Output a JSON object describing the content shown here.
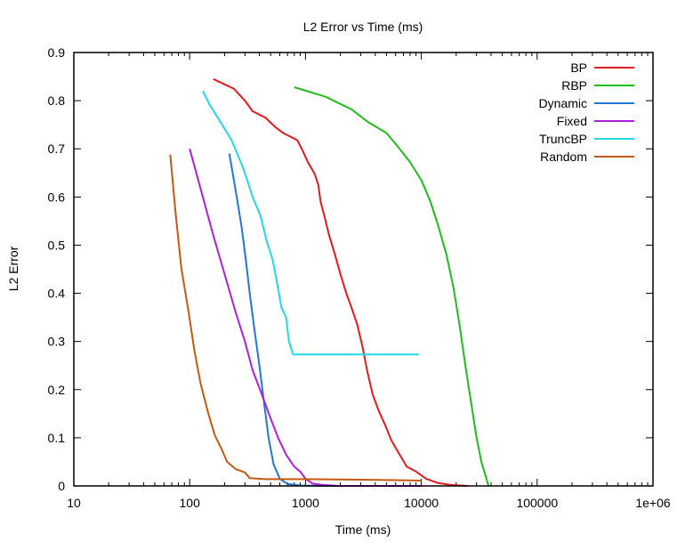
{
  "chart_data": {
    "type": "line",
    "title": "L2 Error vs Time (ms)",
    "xlabel": "Time (ms)",
    "ylabel": "L2 Error",
    "xscale": "log",
    "xlim": [
      10,
      1000000
    ],
    "ylim": [
      0,
      0.9
    ],
    "xticks": [
      {
        "value": 10,
        "label": "10"
      },
      {
        "value": 100,
        "label": "100"
      },
      {
        "value": 1000,
        "label": "1000"
      },
      {
        "value": 10000,
        "label": "10000"
      },
      {
        "value": 100000,
        "label": "100000"
      },
      {
        "value": 1000000,
        "label": "1e+06"
      }
    ],
    "yticks": [
      {
        "value": 0,
        "label": "0"
      },
      {
        "value": 0.1,
        "label": "0.1"
      },
      {
        "value": 0.2,
        "label": "0.2"
      },
      {
        "value": 0.3,
        "label": "0.3"
      },
      {
        "value": 0.4,
        "label": "0.4"
      },
      {
        "value": 0.5,
        "label": "0.5"
      },
      {
        "value": 0.6,
        "label": "0.6"
      },
      {
        "value": 0.7,
        "label": "0.7"
      },
      {
        "value": 0.8,
        "label": "0.8"
      },
      {
        "value": 0.9,
        "label": "0.9"
      }
    ],
    "grid": false,
    "legend_position": "top-right",
    "series": [
      {
        "name": "BP",
        "color": "#e41a1c",
        "points": [
          [
            160,
            0.845
          ],
          [
            240,
            0.825
          ],
          [
            300,
            0.8
          ],
          [
            350,
            0.778
          ],
          [
            450,
            0.765
          ],
          [
            550,
            0.745
          ],
          [
            650,
            0.732
          ],
          [
            850,
            0.718
          ],
          [
            950,
            0.695
          ],
          [
            1050,
            0.672
          ],
          [
            1200,
            0.648
          ],
          [
            1290,
            0.625
          ],
          [
            1350,
            0.59
          ],
          [
            1450,
            0.562
          ],
          [
            1600,
            0.52
          ],
          [
            1800,
            0.48
          ],
          [
            2000,
            0.44
          ],
          [
            2250,
            0.4
          ],
          [
            2500,
            0.37
          ],
          [
            2800,
            0.335
          ],
          [
            3100,
            0.29
          ],
          [
            3400,
            0.24
          ],
          [
            3800,
            0.19
          ],
          [
            4300,
            0.155
          ],
          [
            4900,
            0.125
          ],
          [
            5500,
            0.095
          ],
          [
            6500,
            0.065
          ],
          [
            7500,
            0.04
          ],
          [
            9000,
            0.03
          ],
          [
            11000,
            0.015
          ],
          [
            14000,
            0.006
          ],
          [
            18000,
            0.002
          ],
          [
            25000,
            0.0
          ]
        ]
      },
      {
        "name": "RBP",
        "color": "#1fbd1f",
        "points": [
          [
            800,
            0.828
          ],
          [
            1500,
            0.808
          ],
          [
            2500,
            0.782
          ],
          [
            3500,
            0.755
          ],
          [
            5000,
            0.733
          ],
          [
            6500,
            0.7
          ],
          [
            8000,
            0.672
          ],
          [
            10000,
            0.635
          ],
          [
            12000,
            0.59
          ],
          [
            14000,
            0.54
          ],
          [
            16500,
            0.48
          ],
          [
            19000,
            0.41
          ],
          [
            21500,
            0.33
          ],
          [
            24000,
            0.25
          ],
          [
            27000,
            0.17
          ],
          [
            30000,
            0.1
          ],
          [
            33000,
            0.05
          ],
          [
            36000,
            0.02
          ],
          [
            38000,
            0.0
          ]
        ]
      },
      {
        "name": "Dynamic",
        "color": "#1f78d4",
        "points": [
          [
            220,
            0.69
          ],
          [
            255,
            0.6
          ],
          [
            280,
            0.54
          ],
          [
            305,
            0.47
          ],
          [
            330,
            0.4
          ],
          [
            360,
            0.33
          ],
          [
            400,
            0.25
          ],
          [
            440,
            0.17
          ],
          [
            480,
            0.1
          ],
          [
            530,
            0.045
          ],
          [
            600,
            0.015
          ],
          [
            700,
            0.004
          ],
          [
            900,
            0.001
          ],
          [
            1500,
            0.0
          ],
          [
            5000,
            0.0
          ],
          [
            10000,
            0.0
          ]
        ]
      },
      {
        "name": "Fixed",
        "color": "#b01ee0",
        "points": [
          [
            100,
            0.7
          ],
          [
            130,
            0.6
          ],
          [
            160,
            0.52
          ],
          [
            200,
            0.44
          ],
          [
            250,
            0.36
          ],
          [
            300,
            0.3
          ],
          [
            350,
            0.24
          ],
          [
            420,
            0.19
          ],
          [
            500,
            0.14
          ],
          [
            580,
            0.1
          ],
          [
            680,
            0.065
          ],
          [
            800,
            0.04
          ],
          [
            900,
            0.03
          ],
          [
            1000,
            0.015
          ],
          [
            1150,
            0.005
          ],
          [
            1400,
            0.002
          ],
          [
            2000,
            0.0
          ],
          [
            10000,
            0.0
          ]
        ]
      },
      {
        "name": "TruncBP",
        "color": "#22d8e6",
        "points": [
          [
            130,
            0.82
          ],
          [
            150,
            0.79
          ],
          [
            180,
            0.76
          ],
          [
            230,
            0.718
          ],
          [
            290,
            0.66
          ],
          [
            350,
            0.6
          ],
          [
            410,
            0.56
          ],
          [
            460,
            0.51
          ],
          [
            520,
            0.47
          ],
          [
            570,
            0.42
          ],
          [
            620,
            0.37
          ],
          [
            680,
            0.35
          ],
          [
            720,
            0.3
          ],
          [
            780,
            0.273
          ],
          [
            1500,
            0.273
          ],
          [
            4000,
            0.273
          ],
          [
            9500,
            0.273
          ]
        ]
      },
      {
        "name": "Random",
        "color": "#c45a11",
        "points": [
          [
            68,
            0.688
          ],
          [
            76,
            0.56
          ],
          [
            85,
            0.45
          ],
          [
            98,
            0.36
          ],
          [
            110,
            0.28
          ],
          [
            125,
            0.21
          ],
          [
            145,
            0.15
          ],
          [
            165,
            0.105
          ],
          [
            190,
            0.075
          ],
          [
            210,
            0.05
          ],
          [
            250,
            0.035
          ],
          [
            300,
            0.028
          ],
          [
            330,
            0.016
          ],
          [
            450,
            0.014
          ],
          [
            1000,
            0.014
          ],
          [
            3000,
            0.013
          ],
          [
            6000,
            0.012
          ],
          [
            10000,
            0.011
          ]
        ]
      }
    ]
  }
}
